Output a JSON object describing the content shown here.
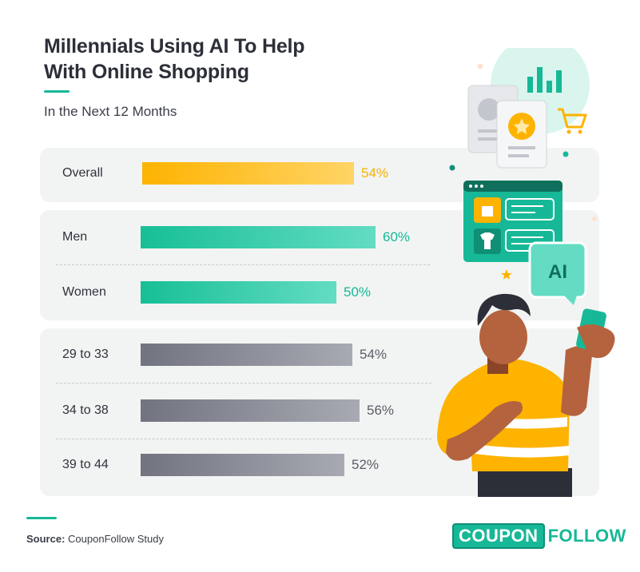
{
  "header": {
    "title_line1": "Millennials Using AI To Help",
    "title_line2": "With Online Shopping",
    "subtitle": "In the Next 12 Months"
  },
  "chart_data": {
    "type": "bar",
    "orientation": "horizontal",
    "title": "Millennials Using AI To Help With Online Shopping",
    "subtitle": "In the Next 12 Months",
    "unit": "%",
    "groups": [
      {
        "rows": [
          {
            "label": "Overall",
            "value": 54,
            "display": "54%"
          }
        ]
      },
      {
        "rows": [
          {
            "label": "Men",
            "value": 60,
            "display": "60%"
          },
          {
            "label": "Women",
            "value": 50,
            "display": "50%"
          }
        ]
      },
      {
        "rows": [
          {
            "label": "29 to 33",
            "value": 54,
            "display": "54%"
          },
          {
            "label": "34 to 38",
            "value": 56,
            "display": "56%"
          },
          {
            "label": "39 to 44",
            "value": 52,
            "display": "52%"
          }
        ]
      }
    ],
    "colors": {
      "overall": [
        "#fdb300",
        "#ffd466"
      ],
      "gender": [
        "#17bf96",
        "#63dcc3"
      ],
      "age": [
        "#71747f",
        "#a7aab3"
      ],
      "overall_label": "#f7b300",
      "gender_label": "#17b897",
      "age_label": "#5a5d66"
    }
  },
  "footer": {
    "source_prefix": "Source:",
    "source_text": "CouponFollow Study",
    "logo_box": "COUPON",
    "logo_text": "FOLLOW"
  },
  "illustration": {
    "badge_text": "AI"
  }
}
